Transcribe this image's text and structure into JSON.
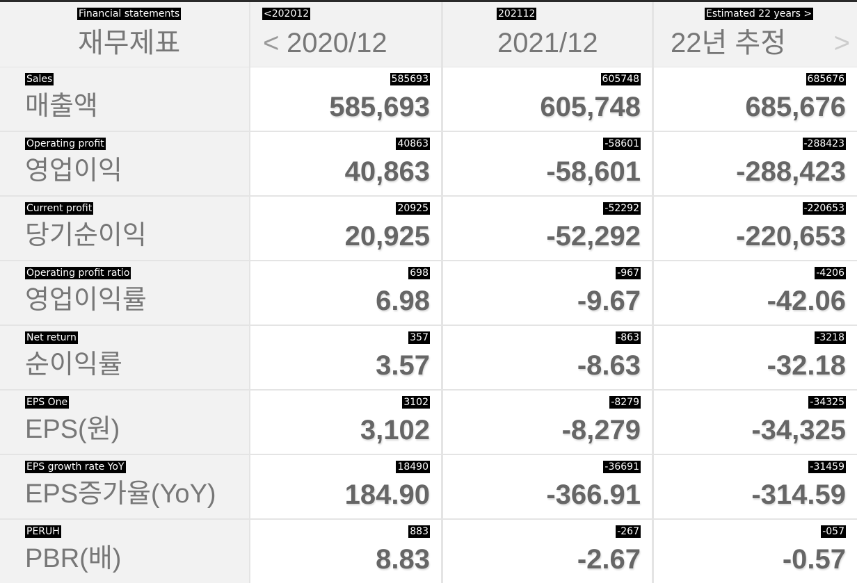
{
  "header": {
    "label": "재무제표",
    "label_overlay": "Financial statements",
    "columns": [
      {
        "text": "2020/12",
        "overlay": "<202012"
      },
      {
        "text": "2021/12",
        "overlay": "202112"
      },
      {
        "text": "22년 추정",
        "overlay": "Estimated 22 years >"
      }
    ],
    "prev_icon": "chevron-left-icon",
    "next_icon": "chevron-right-icon"
  },
  "rows": [
    {
      "label": "매출액",
      "overlay": "Sales",
      "values": [
        "585,693",
        "605,748",
        "685,676"
      ],
      "value_overlays": [
        "585693",
        "605748",
        "685676"
      ]
    },
    {
      "label": "영업이익",
      "overlay": "Operating profit",
      "values": [
        "40,863",
        "-58,601",
        "-288,423"
      ],
      "value_overlays": [
        "40863",
        "-58601",
        "-288423"
      ]
    },
    {
      "label": "당기순이익",
      "overlay": "Current profit",
      "values": [
        "20,925",
        "-52,292",
        "-220,653"
      ],
      "value_overlays": [
        "20925",
        "-52292",
        "-220653"
      ]
    },
    {
      "label": "영업이익률",
      "overlay": "Operating profit ratio",
      "values": [
        "6.98",
        "-9.67",
        "-42.06"
      ],
      "value_overlays": [
        "698",
        "-967",
        "-4206"
      ]
    },
    {
      "label": "순이익률",
      "overlay": "Net return",
      "values": [
        "3.57",
        "-8.63",
        "-32.18"
      ],
      "value_overlays": [
        "357",
        "-863",
        "-3218"
      ]
    },
    {
      "label": "EPS(원)",
      "overlay": "EPS One",
      "values": [
        "3,102",
        "-8,279",
        "-34,325"
      ],
      "value_overlays": [
        "3102",
        "-8279",
        "-34325"
      ]
    },
    {
      "label": "EPS증가율(YoY)",
      "overlay": "EPS growth rate YoY",
      "values": [
        "184.90",
        "-366.91",
        "-314.59"
      ],
      "value_overlays": [
        "18490",
        "-36691",
        "-31459"
      ]
    },
    {
      "label": "PBR(배)",
      "overlay": "PERUH",
      "values": [
        "8.83",
        "-2.67",
        "-0.57"
      ],
      "value_overlays": [
        "883",
        "-267",
        "-057"
      ]
    }
  ]
}
